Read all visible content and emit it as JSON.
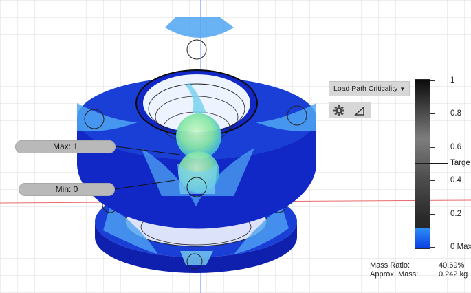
{
  "probes": {
    "max_label": "Max: 1",
    "min_label": "Min: 0"
  },
  "toolbar": {
    "result_dropdown": "Load Path Criticality",
    "settings_icon": "gear-icon",
    "display_icon": "triangle-icon"
  },
  "legend": {
    "ticks": [
      "1",
      "0.8",
      "0.6",
      "0.4",
      "0.2",
      "0 Max"
    ],
    "target_label": "Targe",
    "current_level": 0.12,
    "colors": {
      "low": "#0a3fe6",
      "high_blue": "#2d8df5",
      "bar_dark": "#0b0b0b"
    }
  },
  "stats": {
    "mass_ratio_label": "Mass Ratio:",
    "mass_ratio_value": "40.69%",
    "approx_mass_label": "Approx. Mass:",
    "approx_mass_value": "0.242 kg"
  },
  "colors": {
    "part_dark": "#1228c6",
    "part_mid": "#1a3fd6",
    "part_light": "#4fa4f2",
    "part_cyan": "#79d1f0",
    "part_green": "#a8f0b0",
    "axis_blue": "#6f7cff",
    "axis_red": "#e86a6a",
    "grid": "#dcdcdc"
  }
}
